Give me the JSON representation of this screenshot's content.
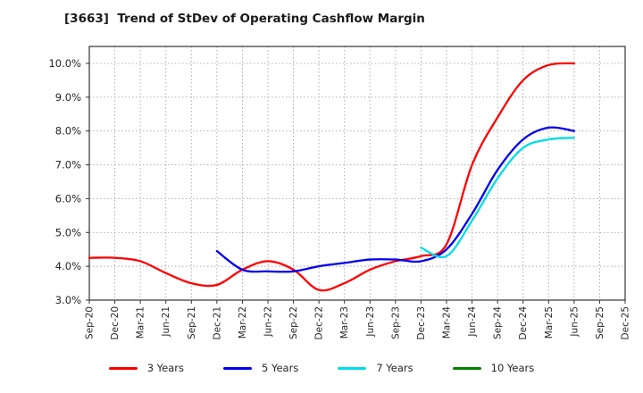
{
  "title": "[3663]  Trend of StDev of Operating Cashflow Margin",
  "chart_data": {
    "type": "line",
    "title": "[3663]  Trend of StDev of Operating Cashflow Margin",
    "xlabel": "",
    "ylabel": "",
    "y_min": 3.0,
    "y_max": 10.5,
    "grid": true,
    "legend_position": "bottom",
    "y_tick_labels": [
      "3.0%",
      "4.0%",
      "5.0%",
      "6.0%",
      "7.0%",
      "8.0%",
      "9.0%",
      "10.0%"
    ],
    "categories": [
      "Sep-20",
      "Dec-20",
      "Mar-21",
      "Jun-21",
      "Sep-21",
      "Dec-21",
      "Mar-22",
      "Jun-22",
      "Sep-22",
      "Dec-22",
      "Mar-23",
      "Jun-23",
      "Sep-23",
      "Dec-23",
      "Mar-24",
      "Jun-24",
      "Sep-24",
      "Dec-24",
      "Mar-25",
      "Jun-25",
      "Sep-25",
      "Dec-25"
    ],
    "series": [
      {
        "name": "3 Years",
        "color": "#ff0000",
        "start_index": 0,
        "values": [
          4.25,
          4.25,
          4.15,
          3.8,
          3.5,
          3.45,
          3.9,
          4.15,
          3.9,
          3.3,
          3.5,
          3.9,
          4.15,
          4.3,
          4.65,
          7.0,
          8.4,
          9.5,
          9.95,
          10.0
        ]
      },
      {
        "name": "5 Years",
        "color": "#0000ee",
        "start_index": 5,
        "values": [
          4.45,
          3.9,
          3.85,
          3.85,
          4.0,
          4.1,
          4.2,
          4.2,
          4.15,
          4.5,
          5.55,
          6.85,
          7.75,
          8.1,
          8.0
        ]
      },
      {
        "name": "7 Years",
        "color": "#00dde8",
        "start_index": 13,
        "values": [
          4.55,
          4.3,
          5.35,
          6.6,
          7.5,
          7.75,
          7.8
        ]
      },
      {
        "name": "10 Years",
        "color": "#008000",
        "start_index": 0,
        "values": []
      }
    ]
  }
}
